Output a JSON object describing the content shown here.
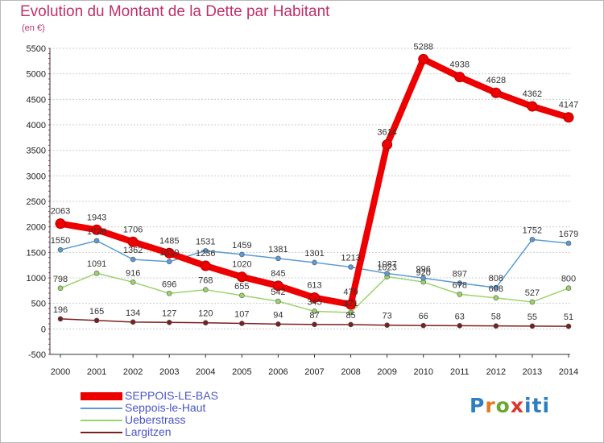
{
  "header": {
    "title": "Evolution du Montant de la Dette par Habitant",
    "subtitle": "(en €)"
  },
  "logo": {
    "text": "Proxiti"
  },
  "chart_data": {
    "type": "line",
    "title": "Evolution du Montant de la Dette par Habitant",
    "subtitle": "(en €)",
    "xlabel": "",
    "ylabel": "",
    "x": [
      2000,
      2001,
      2002,
      2003,
      2004,
      2005,
      2006,
      2007,
      2008,
      2009,
      2010,
      2011,
      2012,
      2013,
      2014
    ],
    "ylim": [
      -500,
      5500
    ],
    "yticks": [
      -500,
      0,
      500,
      1000,
      1500,
      2000,
      2500,
      3000,
      3500,
      4000,
      4500,
      5000,
      5500
    ],
    "grid": "horizontal",
    "legend": "bottom-left",
    "series": [
      {
        "name": "SEPPOIS-LE-BAS",
        "color": "#ee0000",
        "emphasis": true,
        "values": [
          2063,
          1943,
          1706,
          1485,
          1236,
          1020,
          845,
          613,
          479,
          3614,
          5288,
          4938,
          4628,
          4362,
          4147
        ]
      },
      {
        "name": "Seppois-le-Haut",
        "color": "#5b9bd5",
        "emphasis": false,
        "values": [
          1550,
          1728,
          1362,
          1319,
          1531,
          1459,
          1381,
          1301,
          1213,
          1087,
          996,
          897,
          808,
          1752,
          1679
        ]
      },
      {
        "name": "Ueberstrass",
        "color": "#9bd46a",
        "emphasis": false,
        "values": [
          798,
          1091,
          916,
          696,
          768,
          655,
          542,
          345,
          321,
          1023,
          920,
          678,
          608,
          527,
          800
        ]
      },
      {
        "name": "Largitzen",
        "color": "#7a1f1f",
        "emphasis": false,
        "values": [
          196,
          165,
          134,
          127,
          120,
          107,
          94,
          87,
          85,
          73,
          66,
          63,
          58,
          55,
          51
        ]
      }
    ]
  }
}
